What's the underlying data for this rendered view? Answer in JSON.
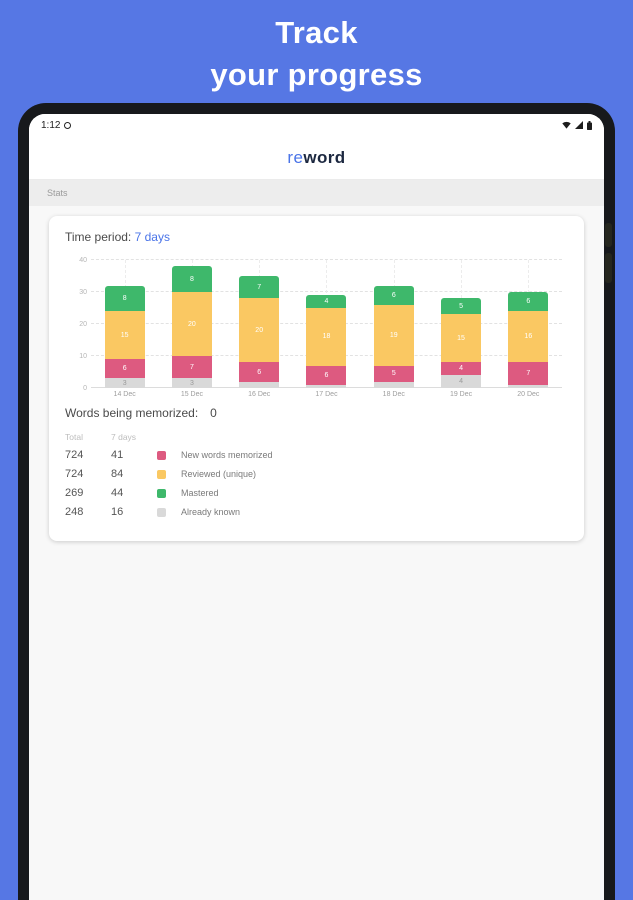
{
  "hero": {
    "title_line1": "Track",
    "title_line2": "your progress"
  },
  "accent_color": "#4a74e8",
  "device": {
    "status_bar": {
      "time": "1:12",
      "left_icon": "circle-icon",
      "right_icons": [
        "wifi-icon",
        "signal-icon",
        "battery-icon"
      ]
    },
    "app_header": {
      "brand_prefix": "re",
      "brand_suffix": "word"
    },
    "toolbar": {
      "label": "Stats"
    },
    "card": {
      "time_period_label": "Time period:",
      "time_period_value": "7 days",
      "words_memorized_label": "Words being memorized:",
      "words_memorized_value": "0",
      "table": {
        "headers": [
          "Total",
          "7 days"
        ],
        "rows": [
          {
            "total": "724",
            "week": "41",
            "color": "#dd5a80",
            "label": "New words memorized"
          },
          {
            "total": "724",
            "week": "84",
            "color": "#fac862",
            "label": "Reviewed (unique)"
          },
          {
            "total": "269",
            "week": "44",
            "color": "#3eb86b",
            "label": "Mastered"
          },
          {
            "total": "248",
            "week": "16",
            "color": "#d9d9d9",
            "label": "Already known"
          }
        ]
      }
    }
  },
  "chart_data": {
    "type": "bar",
    "stacked": true,
    "categories": [
      "14 Dec",
      "15 Dec",
      "16 Dec",
      "17 Dec",
      "18 Dec",
      "19 Dec",
      "20 Dec"
    ],
    "series": [
      {
        "name": "Already known",
        "color": "#d9d9d9",
        "values": [
          3,
          3,
          2,
          1,
          2,
          4,
          1
        ]
      },
      {
        "name": "New words memorized",
        "color": "#dd5a80",
        "values": [
          6,
          7,
          6,
          6,
          5,
          4,
          7
        ]
      },
      {
        "name": "Reviewed (unique)",
        "color": "#fac862",
        "values": [
          15,
          20,
          20,
          18,
          19,
          15,
          16
        ]
      },
      {
        "name": "Mastered",
        "color": "#3eb86b",
        "values": [
          8,
          8,
          7,
          4,
          6,
          5,
          6
        ]
      }
    ],
    "ylim": [
      0,
      40
    ],
    "yticks": [
      0,
      10,
      20,
      30,
      40
    ],
    "grid": "dashed-horizontal",
    "legend_position": "below-table"
  }
}
